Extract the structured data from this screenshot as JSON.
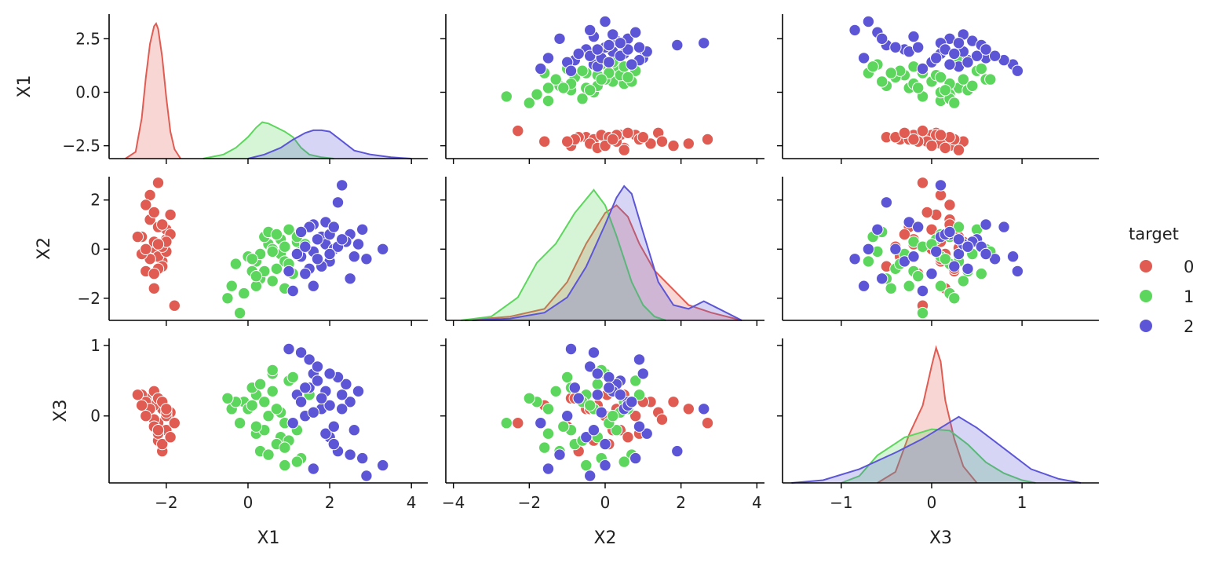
{
  "chart_data": {
    "type": "pairplot",
    "variables": [
      "X1",
      "X2",
      "X3"
    ],
    "hue": {
      "title": "target",
      "levels": [
        "0",
        "1",
        "2"
      ],
      "colors": [
        "#e05c52",
        "#5cd65c",
        "#5c56d6"
      ]
    },
    "axes": {
      "X1": {
        "range": [
          -3.4,
          4.4
        ],
        "ticks": [
          -2,
          0,
          2,
          4
        ],
        "tick_labels": [
          "−2",
          "0",
          "2",
          "4"
        ],
        "label": "X1"
      },
      "X2": {
        "range": [
          -4.2,
          4.2
        ],
        "ticks": [
          -4,
          -2,
          0,
          2,
          4
        ],
        "tick_labels": [
          "−4",
          "−2",
          "0",
          "2",
          "4"
        ],
        "label": "X2"
      },
      "X3": {
        "range": [
          -1.65,
          1.85
        ],
        "ticks": [
          -1,
          0,
          1
        ],
        "tick_labels": [
          "−1",
          "0",
          "1"
        ],
        "label": "X3"
      }
    },
    "row_axes": {
      "X1": {
        "range": [
          -3.1,
          3.65
        ],
        "ticks": [
          -2.5,
          0.0,
          2.5
        ],
        "tick_labels": [
          "−2.5",
          "0.0",
          "2.5"
        ],
        "label": "X1"
      },
      "X2": {
        "range": [
          -2.9,
          2.95
        ],
        "ticks": [
          -2,
          0,
          2
        ],
        "tick_labels": [
          "−2",
          "0",
          "2"
        ],
        "label": "X2"
      },
      "X3": {
        "range": [
          -0.95,
          1.1
        ],
        "ticks": [
          0,
          1
        ],
        "tick_labels": [
          "0",
          "1"
        ],
        "label": "X3"
      }
    },
    "points": {
      "0": [
        [
          -2.3,
          0.05,
          0.3
        ],
        [
          -2.1,
          -0.5,
          0.1
        ],
        [
          -2.4,
          1.2,
          0.2
        ],
        [
          -2.2,
          2.7,
          -0.1
        ],
        [
          -2.5,
          -0.9,
          0.25
        ],
        [
          -2.0,
          0.4,
          -0.2
        ],
        [
          -1.9,
          1.4,
          0.05
        ],
        [
          -2.3,
          -1.6,
          0.15
        ],
        [
          -2.6,
          0.5,
          0.3
        ],
        [
          -2.2,
          -0.3,
          -0.35
        ],
        [
          -2.0,
          0.8,
          0.0
        ],
        [
          -2.4,
          2.2,
          0.1
        ],
        [
          -2.1,
          -0.7,
          -0.5
        ],
        [
          -2.3,
          0.3,
          0.35
        ],
        [
          -1.8,
          -2.3,
          -0.1
        ],
        [
          -2.5,
          1.8,
          0.2
        ],
        [
          -2.2,
          0.9,
          -0.25
        ],
        [
          -2.0,
          -0.1,
          0.05
        ],
        [
          -2.4,
          -0.4,
          0.1
        ],
        [
          -2.1,
          0.1,
          -0.4
        ],
        [
          -2.6,
          -0.2,
          0.15
        ],
        [
          -2.3,
          1.5,
          -0.05
        ],
        [
          -2.2,
          -0.8,
          0.25
        ],
        [
          -1.9,
          0.6,
          -0.3
        ],
        [
          -2.5,
          0.0,
          0.0
        ],
        [
          -2.1,
          1.0,
          0.2
        ],
        [
          -2.3,
          -1.0,
          -0.15
        ],
        [
          -2.0,
          0.3,
          0.1
        ],
        [
          -2.7,
          0.5,
          0.3
        ],
        [
          -2.2,
          0.2,
          -0.2
        ]
      ],
      "1": [
        [
          0.2,
          -0.5,
          0.3
        ],
        [
          0.5,
          0.2,
          0.0
        ],
        [
          -0.1,
          -1.8,
          0.2
        ],
        [
          0.8,
          -0.2,
          -0.3
        ],
        [
          1.0,
          0.8,
          0.5
        ],
        [
          0.3,
          -1.2,
          -0.5
        ],
        [
          0.6,
          0.0,
          0.6
        ],
        [
          -0.4,
          -1.5,
          0.1
        ],
        [
          1.2,
          0.3,
          -0.2
        ],
        [
          0.1,
          -0.9,
          0.4
        ],
        [
          0.9,
          -0.5,
          -0.7
        ],
        [
          0.4,
          0.5,
          0.2
        ],
        [
          1.5,
          0.9,
          0.3
        ],
        [
          -0.2,
          -2.6,
          -0.1
        ],
        [
          0.7,
          -0.8,
          -0.4
        ],
        [
          0.0,
          -0.3,
          0.1
        ],
        [
          1.1,
          -1.0,
          0.55
        ],
        [
          0.5,
          0.7,
          -0.55
        ],
        [
          0.2,
          -1.5,
          -0.25
        ],
        [
          0.8,
          0.4,
          0.05
        ],
        [
          1.3,
          -0.1,
          -0.6
        ],
        [
          -0.3,
          -0.6,
          0.2
        ],
        [
          0.6,
          -1.3,
          0.35
        ],
        [
          0.9,
          0.1,
          -0.1
        ],
        [
          0.3,
          -0.2,
          0.45
        ],
        [
          1.0,
          -0.6,
          -0.35
        ],
        [
          -0.5,
          -2.0,
          0.25
        ],
        [
          0.7,
          0.6,
          0.1
        ],
        [
          0.4,
          -0.9,
          -0.2
        ],
        [
          1.4,
          0.2,
          0.0
        ],
        [
          0.1,
          -0.4,
          0.15
        ],
        [
          0.9,
          -1.6,
          -0.45
        ],
        [
          0.6,
          -0.1,
          0.65
        ],
        [
          1.2,
          0.5,
          -0.65
        ],
        [
          0.2,
          -1.1,
          -0.15
        ]
      ],
      "2": [
        [
          1.5,
          -0.8,
          0.4
        ],
        [
          1.8,
          0.5,
          0.1
        ],
        [
          2.2,
          1.9,
          -0.5
        ],
        [
          1.3,
          -0.3,
          0.9
        ],
        [
          2.5,
          0.6,
          0.2
        ],
        [
          1.6,
          1.0,
          0.6
        ],
        [
          2.0,
          -0.5,
          -0.3
        ],
        [
          1.9,
          0.2,
          0.35
        ],
        [
          2.8,
          0.8,
          -0.6
        ],
        [
          1.4,
          -1.0,
          0.0
        ],
        [
          2.3,
          2.6,
          0.1
        ],
        [
          1.7,
          0.4,
          0.5
        ],
        [
          2.1,
          0.0,
          -0.4
        ],
        [
          3.3,
          0.0,
          -0.7
        ],
        [
          1.2,
          -0.2,
          0.3
        ],
        [
          2.6,
          -0.3,
          -0.2
        ],
        [
          1.5,
          0.9,
          0.8
        ],
        [
          2.0,
          0.6,
          0.15
        ],
        [
          1.8,
          -0.7,
          0.25
        ],
        [
          2.9,
          -0.4,
          -0.85
        ],
        [
          1.1,
          -1.7,
          -0.1
        ],
        [
          2.4,
          0.3,
          0.45
        ],
        [
          1.6,
          -0.1,
          0.05
        ],
        [
          2.2,
          0.1,
          0.55
        ],
        [
          1.9,
          1.1,
          -0.25
        ],
        [
          1.3,
          0.7,
          0.2
        ],
        [
          2.7,
          0.2,
          0.35
        ],
        [
          1.7,
          -0.4,
          0.7
        ],
        [
          2.1,
          0.9,
          -0.15
        ],
        [
          1.4,
          0.1,
          0.4
        ],
        [
          2.5,
          -1.2,
          -0.55
        ],
        [
          1.0,
          -0.9,
          0.95
        ],
        [
          1.6,
          -1.5,
          -0.75
        ],
        [
          2.3,
          0.4,
          0.3
        ],
        [
          2.0,
          -0.2,
          0.6
        ]
      ]
    },
    "density": {
      "X1": {
        "0": [
          [
            -3.0,
            0.0
          ],
          [
            -2.75,
            0.05
          ],
          [
            -2.6,
            0.3
          ],
          [
            -2.5,
            0.6
          ],
          [
            -2.4,
            0.85
          ],
          [
            -2.3,
            0.98
          ],
          [
            -2.25,
            1.0
          ],
          [
            -2.2,
            0.96
          ],
          [
            -2.1,
            0.75
          ],
          [
            -2.0,
            0.45
          ],
          [
            -1.9,
            0.2
          ],
          [
            -1.8,
            0.07
          ],
          [
            -1.65,
            0.0
          ]
        ],
        "1": [
          [
            -1.1,
            0.0
          ],
          [
            -0.6,
            0.03
          ],
          [
            -0.3,
            0.08
          ],
          [
            0.0,
            0.16
          ],
          [
            0.2,
            0.23
          ],
          [
            0.35,
            0.27
          ],
          [
            0.5,
            0.26
          ],
          [
            0.7,
            0.23
          ],
          [
            0.9,
            0.2
          ],
          [
            1.1,
            0.16
          ],
          [
            1.3,
            0.08
          ],
          [
            1.5,
            0.03
          ],
          [
            1.8,
            0.01
          ],
          [
            2.1,
            0.0
          ]
        ],
        "2": [
          [
            0.0,
            0.0
          ],
          [
            0.4,
            0.03
          ],
          [
            0.8,
            0.08
          ],
          [
            1.1,
            0.14
          ],
          [
            1.4,
            0.19
          ],
          [
            1.6,
            0.21
          ],
          [
            1.8,
            0.21
          ],
          [
            2.0,
            0.2
          ],
          [
            2.3,
            0.13
          ],
          [
            2.6,
            0.06
          ],
          [
            3.0,
            0.03
          ],
          [
            3.5,
            0.01
          ],
          [
            4.0,
            0.0
          ]
        ]
      },
      "X2": {
        "0": [
          [
            -3.7,
            0.0
          ],
          [
            -2.5,
            0.01
          ],
          [
            -1.6,
            0.03
          ],
          [
            -1.0,
            0.1
          ],
          [
            -0.5,
            0.2
          ],
          [
            0.0,
            0.28
          ],
          [
            0.3,
            0.3
          ],
          [
            0.6,
            0.27
          ],
          [
            0.9,
            0.2
          ],
          [
            1.3,
            0.13
          ],
          [
            1.8,
            0.08
          ],
          [
            2.2,
            0.04
          ],
          [
            2.8,
            0.02
          ],
          [
            3.6,
            0.0
          ]
        ],
        "1": [
          [
            -3.8,
            0.0
          ],
          [
            -3.0,
            0.01
          ],
          [
            -2.3,
            0.06
          ],
          [
            -1.8,
            0.15
          ],
          [
            -1.3,
            0.2
          ],
          [
            -0.8,
            0.28
          ],
          [
            -0.3,
            0.34
          ],
          [
            0.0,
            0.3
          ],
          [
            0.3,
            0.22
          ],
          [
            0.7,
            0.1
          ],
          [
            1.0,
            0.04
          ],
          [
            1.3,
            0.01
          ],
          [
            1.6,
            0.0
          ]
        ],
        "2": [
          [
            -3.5,
            0.0
          ],
          [
            -2.5,
            0.005
          ],
          [
            -1.6,
            0.02
          ],
          [
            -1.0,
            0.06
          ],
          [
            -0.5,
            0.14
          ],
          [
            0.0,
            0.25
          ],
          [
            0.3,
            0.32
          ],
          [
            0.5,
            0.35
          ],
          [
            0.7,
            0.33
          ],
          [
            1.0,
            0.23
          ],
          [
            1.4,
            0.1
          ],
          [
            1.8,
            0.04
          ],
          [
            2.2,
            0.03
          ],
          [
            2.6,
            0.05
          ],
          [
            3.0,
            0.03
          ],
          [
            3.6,
            0.0
          ]
        ]
      },
      "X3": {
        "0": [
          [
            -0.6,
            0.0
          ],
          [
            -0.4,
            0.08
          ],
          [
            -0.25,
            0.35
          ],
          [
            -0.1,
            0.56
          ],
          [
            0.0,
            0.85
          ],
          [
            0.05,
            0.98
          ],
          [
            0.1,
            0.88
          ],
          [
            0.15,
            0.6
          ],
          [
            0.25,
            0.32
          ],
          [
            0.35,
            0.12
          ],
          [
            0.5,
            0.0
          ]
        ],
        "1": [
          [
            -1.0,
            0.0
          ],
          [
            -0.8,
            0.05
          ],
          [
            -0.6,
            0.2
          ],
          [
            -0.3,
            0.33
          ],
          [
            0.0,
            0.39
          ],
          [
            0.2,
            0.38
          ],
          [
            0.4,
            0.28
          ],
          [
            0.6,
            0.15
          ],
          [
            0.8,
            0.07
          ],
          [
            1.0,
            0.02
          ],
          [
            1.15,
            0.0
          ]
        ],
        "2": [
          [
            -1.55,
            0.0
          ],
          [
            -1.2,
            0.02
          ],
          [
            -0.8,
            0.1
          ],
          [
            -0.4,
            0.22
          ],
          [
            -0.1,
            0.32
          ],
          [
            0.1,
            0.4
          ],
          [
            0.3,
            0.48
          ],
          [
            0.5,
            0.4
          ],
          [
            0.8,
            0.25
          ],
          [
            1.1,
            0.1
          ],
          [
            1.4,
            0.03
          ],
          [
            1.65,
            0.0
          ]
        ]
      }
    }
  }
}
